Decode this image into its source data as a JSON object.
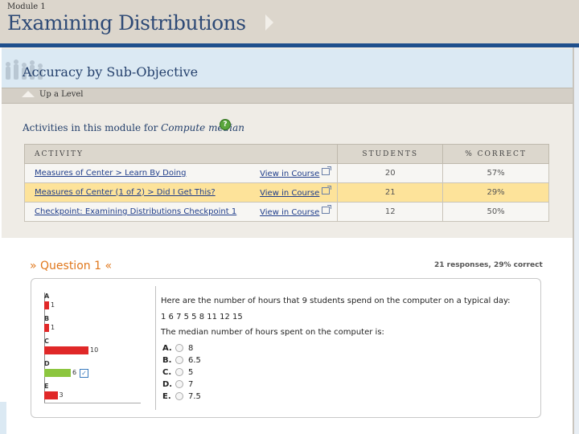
{
  "header": {
    "module_label": "Module 1",
    "module_title": "Examining Distributions"
  },
  "sub_header": {
    "title": "Accuracy by Sub-Objective",
    "up_label": "Up a Level"
  },
  "activities": {
    "heading_prefix": "Activities in this module for",
    "heading_topic": "Compute median",
    "help_icon": "?",
    "columns": [
      "ACTIVITY",
      "STUDENTS",
      "% CORRECT"
    ],
    "rows": [
      {
        "name": "Measures of Center > Learn By Doing",
        "view": "View in Course",
        "students": "20",
        "correct": "57%"
      },
      {
        "name": "Measures of Center (1 of 2) > Did I Get This?",
        "view": "View in Course",
        "students": "21",
        "correct": "29%"
      },
      {
        "name": "Checkpoint: Examining Distributions Checkpoint 1",
        "view": "View in Course",
        "students": "12",
        "correct": "50%"
      }
    ]
  },
  "question": {
    "title": "» Question 1 «",
    "stats": "21 responses, 29% correct",
    "prompt": "Here are the number of hours that 9 students spend on the computer on a typical day:",
    "data": "1 6 7 5 5 8 11 12 15",
    "stem": "The median number of hours spent on the computer is:",
    "options": [
      {
        "letter": "A.",
        "value": "8"
      },
      {
        "letter": "B.",
        "value": "6.5"
      },
      {
        "letter": "C.",
        "value": "5"
      },
      {
        "letter": "D.",
        "value": "7"
      },
      {
        "letter": "E.",
        "value": "7.5"
      }
    ],
    "distribution": [
      {
        "label": "A",
        "count": "1",
        "color": "#e02828"
      },
      {
        "label": "B",
        "count": "1",
        "color": "#e02828"
      },
      {
        "label": "C",
        "count": "10",
        "color": "#e02828"
      },
      {
        "label": "D",
        "count": "6",
        "color": "#8cc63f",
        "correct": true
      },
      {
        "label": "E",
        "count": "3",
        "color": "#e02828"
      }
    ],
    "check_mark": "✓"
  },
  "colors": {
    "brand_blue": "#1f4f8c",
    "accent_orange": "#e0771b",
    "highlight_row": "#fde39a"
  }
}
